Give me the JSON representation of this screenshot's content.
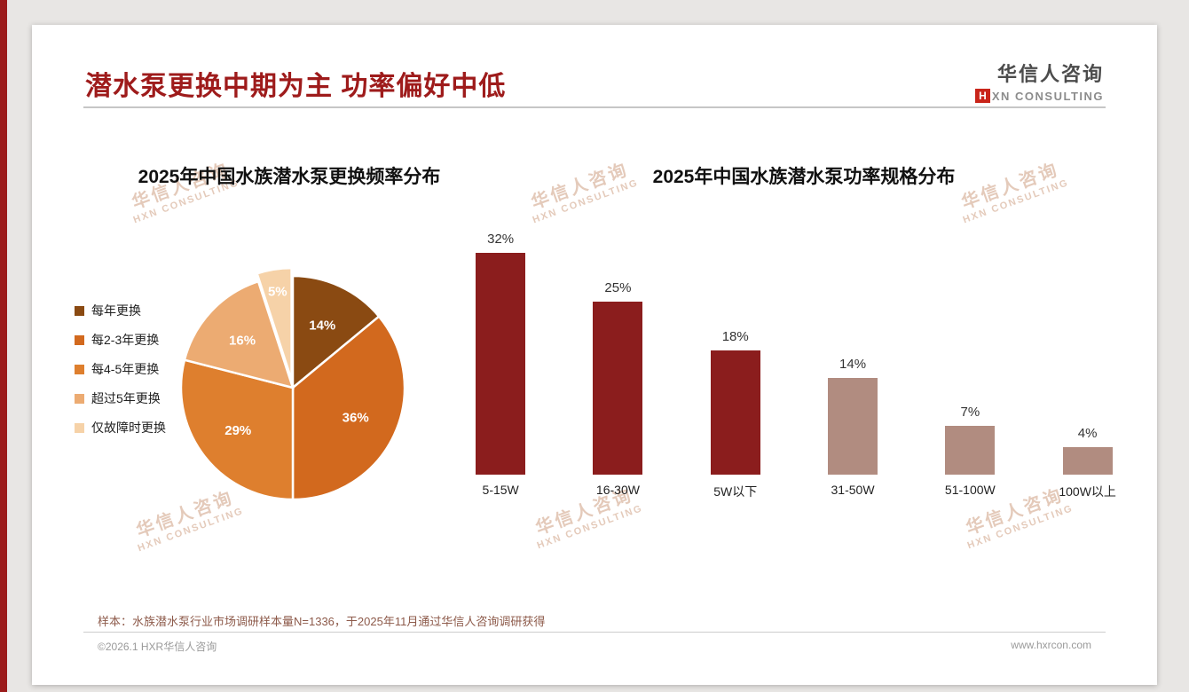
{
  "page": {
    "title": "潜水泵更换中期为主 功率偏好中低",
    "logo": {
      "cn": "华信人咨询",
      "mark": "H",
      "en": "XN CONSULTING"
    },
    "watermark": {
      "line1": "华信人咨询",
      "line2": "HXN CONSULTING"
    },
    "footnote": "样本：水族潜水泵行业市场调研样本量N=1336，于2025年11月通过华信人咨询调研获得",
    "footer_left": "©2026.1 HXR华信人咨询",
    "footer_right": "www.hxrcon.com"
  },
  "chart_data": [
    {
      "type": "pie",
      "title": "2025年中国水族潜水泵更换频率分布",
      "categories": [
        "每年更换",
        "每2-3年更换",
        "每4-5年更换",
        "超过5年更换",
        "仅故障时更换"
      ],
      "values": [
        14,
        36,
        29,
        16,
        5
      ],
      "labels": [
        "14%",
        "36%",
        "29%",
        "16%",
        "5%"
      ],
      "colors": [
        "#8a4a12",
        "#d2691e",
        "#de7f2e",
        "#ecab72",
        "#f6d2a8"
      ],
      "legend_position": "left",
      "start_angle_deg": -90,
      "exploded_index": 4
    },
    {
      "type": "bar",
      "title": "2025年中国水族潜水泵功率规格分布",
      "categories": [
        "5-15W",
        "16-30W",
        "5W以下",
        "31-50W",
        "51-100W",
        "100W以上"
      ],
      "values": [
        32,
        25,
        18,
        14,
        7,
        4
      ],
      "labels": [
        "32%",
        "25%",
        "18%",
        "14%",
        "7%",
        "4%"
      ],
      "colors": [
        "#8b1d1d",
        "#8b1d1d",
        "#8b1d1d",
        "#b18c80",
        "#b18c80",
        "#b18c80"
      ],
      "ylim": [
        0,
        35
      ],
      "grid": false,
      "xlabel": "",
      "ylabel": ""
    }
  ]
}
